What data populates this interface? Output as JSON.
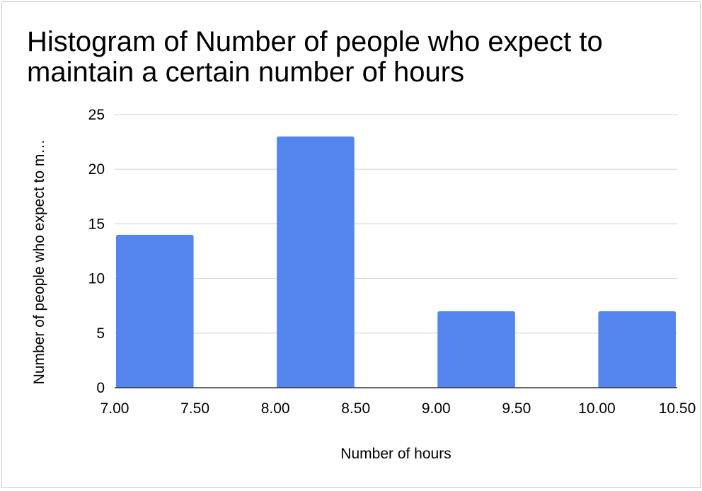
{
  "chart_data": {
    "type": "bar",
    "title": "Histogram of Number of people who expect to maintain a certain number of hours",
    "xlabel": "Number of hours",
    "ylabel": "Number of people who expect to m…",
    "ylim": [
      0,
      25
    ],
    "xlim": [
      7.0,
      10.5
    ],
    "yticks": [
      "0",
      "5",
      "10",
      "15",
      "20",
      "25"
    ],
    "xticks": [
      "7.00",
      "7.50",
      "8.00",
      "8.50",
      "9.00",
      "9.50",
      "10.00",
      "10.50"
    ],
    "bins": [
      {
        "start": 7.0,
        "end": 7.5,
        "value": 14
      },
      {
        "start": 8.0,
        "end": 8.5,
        "value": 23
      },
      {
        "start": 9.0,
        "end": 9.5,
        "value": 7
      },
      {
        "start": 10.0,
        "end": 10.5,
        "value": 7
      }
    ],
    "grid": true,
    "legend": "none",
    "colors": {
      "bar": "#5484ed",
      "grid": "#d9d9d9",
      "axis": "#333333"
    }
  }
}
